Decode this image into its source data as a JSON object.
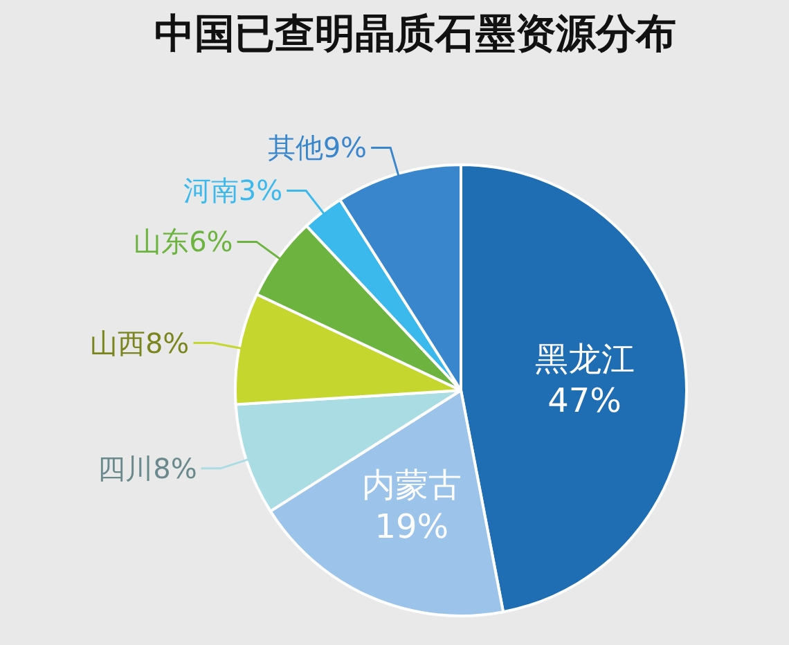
{
  "chart_data": {
    "type": "pie",
    "title": "中国已查明晶质石墨资源分布",
    "categories": [
      "黑龙江",
      "内蒙古",
      "四川",
      "山西",
      "山东",
      "河南",
      "其他"
    ],
    "values": [
      47,
      19,
      8,
      8,
      6,
      3,
      9
    ],
    "value_labels": [
      "47%",
      "19%",
      "8%",
      "8%",
      "6%",
      "3%",
      "9%"
    ],
    "colors": [
      "#1f6db3",
      "#9cc3ea",
      "#a9dde3",
      "#c5d72f",
      "#6cb43f",
      "#3cb9ec",
      "#3a86cc"
    ],
    "legend": false
  }
}
